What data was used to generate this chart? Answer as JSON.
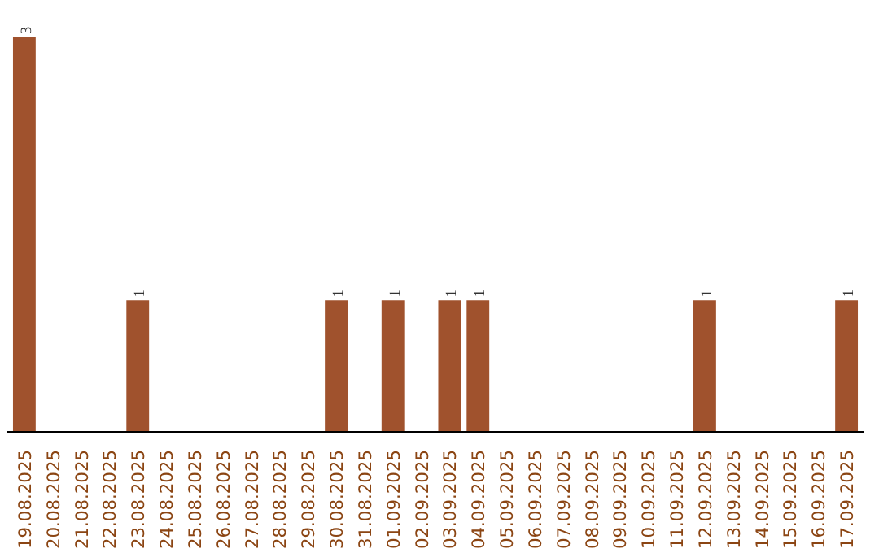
{
  "chart_data": {
    "type": "bar",
    "categories": [
      "19.08.2025",
      "20.08.2025",
      "21.08.2025",
      "22.08.2025",
      "23.08.2025",
      "24.08.2025",
      "25.08.2025",
      "26.08.2025",
      "27.08.2025",
      "28.08.2025",
      "29.08.2025",
      "30.08.2025",
      "31.08.2025",
      "01.09.2025",
      "02.09.2025",
      "03.09.2025",
      "04.09.2025",
      "05.09.2025",
      "06.09.2025",
      "07.09.2025",
      "08.09.2025",
      "09.09.2025",
      "10.09.2025",
      "11.09.2025",
      "12.09.2025",
      "13.09.2025",
      "14.09.2025",
      "15.09.2025",
      "16.09.2025",
      "17.09.2025"
    ],
    "values": [
      3,
      0,
      0,
      0,
      1,
      0,
      0,
      0,
      0,
      0,
      0,
      1,
      0,
      1,
      0,
      1,
      1,
      0,
      0,
      0,
      0,
      0,
      0,
      0,
      1,
      0,
      0,
      0,
      0,
      1
    ],
    "value_labels": [
      "3",
      null,
      null,
      null,
      "1",
      null,
      null,
      null,
      null,
      null,
      null,
      "1",
      null,
      "1",
      null,
      "1",
      "1",
      null,
      null,
      null,
      null,
      null,
      null,
      null,
      "1",
      null,
      null,
      null,
      null,
      "1"
    ],
    "color": "#a0522d",
    "grid": false,
    "tick_labels": "x"
  }
}
